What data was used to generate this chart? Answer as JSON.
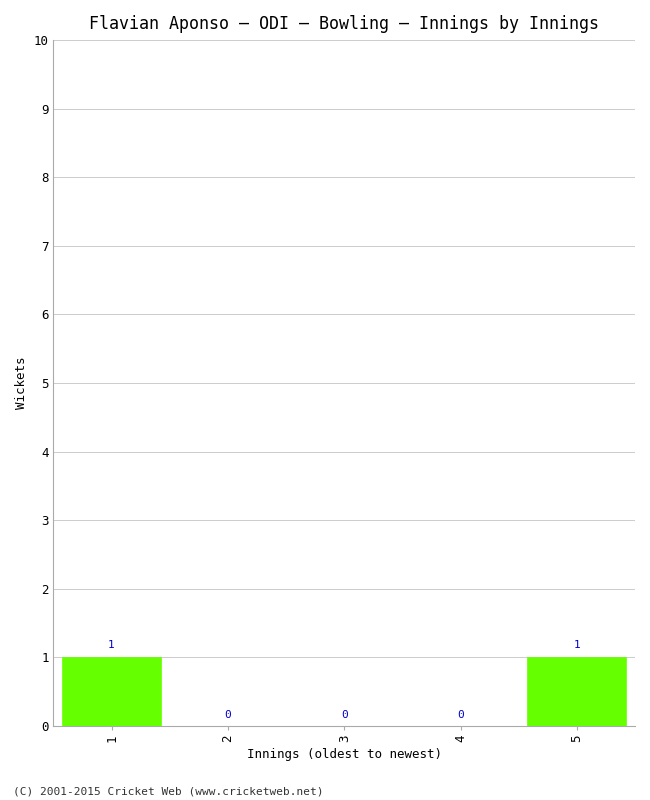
{
  "title": "Flavian Aponso – ODI – Bowling – Innings by Innings",
  "xlabel": "Innings (oldest to newest)",
  "ylabel": "Wickets",
  "categories": [
    1,
    2,
    3,
    4,
    5
  ],
  "values": [
    1,
    0,
    0,
    0,
    1
  ],
  "bar_color": "#66ff00",
  "bar_edge_color": "#66ff00",
  "ylim": [
    0,
    10
  ],
  "yticks": [
    0,
    1,
    2,
    3,
    4,
    5,
    6,
    7,
    8,
    9,
    10
  ],
  "background_color": "#ffffff",
  "grid_color": "#cccccc",
  "label_color": "#0000cc",
  "footer": "(C) 2001-2015 Cricket Web (www.cricketweb.net)",
  "title_fontsize": 12,
  "axis_fontsize": 9,
  "tick_fontsize": 9,
  "footer_fontsize": 8,
  "label_fontsize": 8,
  "bar_width": 0.85
}
